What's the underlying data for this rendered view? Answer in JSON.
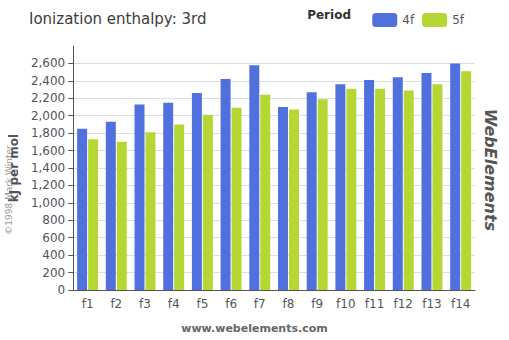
{
  "chart_data": {
    "type": "bar",
    "title": "Ionization enthalpy: 3rd",
    "ylabel": "kJ per mol",
    "categories": [
      "f1",
      "f2",
      "f3",
      "f4",
      "f5",
      "f6",
      "f7",
      "f8",
      "f9",
      "f10",
      "f11",
      "f12",
      "f13",
      "f14"
    ],
    "series": [
      {
        "name": "4f",
        "values": [
          1850,
          1930,
          2130,
          2150,
          2260,
          2420,
          2580,
          2100,
          2270,
          2360,
          2410,
          2440,
          2490,
          2600
        ]
      },
      {
        "name": "5f",
        "values": [
          1730,
          1700,
          1810,
          1900,
          2010,
          2090,
          2240,
          2070,
          2190,
          2310,
          2310,
          2290,
          2360,
          2510
        ]
      }
    ],
    "ylim": [
      0,
      2800
    ],
    "yticks": [
      0,
      200,
      400,
      600,
      800,
      1000,
      1200,
      1400,
      1600,
      1800,
      2000,
      2200,
      2400,
      2600
    ],
    "grid": true,
    "legend": "top right",
    "annotations": [
      "Period",
      "www.webelements.com",
      "WebElements",
      "©1998 Mark Winter"
    ]
  }
}
